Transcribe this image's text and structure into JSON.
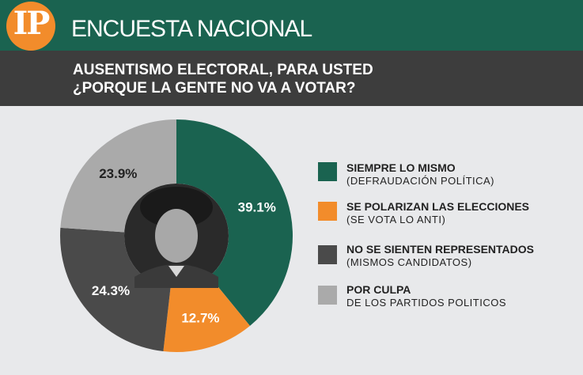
{
  "header": {
    "logo_text": "IP",
    "brand": "ENCUESTA NACIONAL",
    "title_line1": "AUSENTISMO ELECTORAL, PARA USTED",
    "title_line2": "¿PORQUE LA GENTE NO VA A VOTAR?"
  },
  "colors": {
    "header_green": "#1a6350",
    "title_bar": "#3d3d3d",
    "logo_orange": "#f28c2b",
    "background": "#e8e9eb"
  },
  "legend": [
    {
      "label": "SIEMPRE LO MISMO",
      "sublabel": "(DEFRAUDACIÓN POLÍTICA)",
      "color": "#1a6350"
    },
    {
      "label": "SE POLARIZAN LAS ELECCIONES",
      "sublabel": "(SE VOTA LO ANTI)",
      "color": "#f28c2b"
    },
    {
      "label": "NO SE SIENTEN REPRESENTADOS",
      "sublabel": "(MISMOS CANDIDATOS)",
      "color": "#4a4a4a"
    },
    {
      "label": "POR CULPA",
      "sublabel": "DE LOS PARTIDOS POLITICOS",
      "color": "#aaaaaa"
    }
  ],
  "chart_data": {
    "type": "pie",
    "donut": true,
    "start_angle_deg": 0,
    "direction": "clockwise",
    "categories": [
      "SIEMPRE LO MISMO (DEFRAUDACIÓN POLÍTICA)",
      "SE POLARIZAN LAS ELECCIONES (SE VOTA LO ANTI)",
      "NO SE SIENTEN REPRESENTADOS (MISMOS CANDIDATOS)",
      "POR CULPA DE LOS PARTIDOS POLITICOS"
    ],
    "values": [
      39.1,
      12.7,
      24.3,
      23.9
    ],
    "labels": [
      "39.1%",
      "12.7%",
      "24.3%",
      "23.9%"
    ],
    "colors": [
      "#1a6350",
      "#f28c2b",
      "#4a4a4a",
      "#aaaaaa"
    ],
    "label_colors": [
      "#ffffff",
      "#ffffff",
      "#ffffff",
      "#222222"
    ],
    "center_image": "portrait-photo",
    "legend_position": "right"
  }
}
